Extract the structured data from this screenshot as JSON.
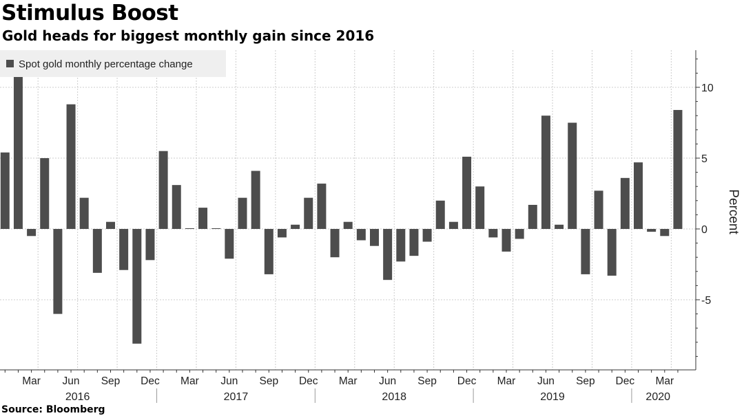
{
  "header": {
    "title": "Stimulus Boost",
    "subtitle": "Gold heads for biggest monthly gain since 2016"
  },
  "footer": {
    "source": "Source: Bloomberg"
  },
  "colors": {
    "bar": "#4d4d4d",
    "grid": "#cccccc",
    "legend_bg": "#efefef"
  },
  "chart_data": {
    "type": "bar",
    "title": "",
    "ylabel": "Percent",
    "ylim": [
      -10,
      12.5
    ],
    "yticks": [
      -5,
      0,
      5,
      10
    ],
    "legend": {
      "placement": "top-left"
    },
    "grid": true,
    "month_tick_labels": [
      "Mar",
      "Jun",
      "Sep",
      "Dec",
      "Mar",
      "Jun",
      "Sep",
      "Dec",
      "Mar",
      "Jun",
      "Sep",
      "Dec",
      "Mar",
      "Jun",
      "Sep",
      "Dec",
      "Mar"
    ],
    "year_labels": [
      "2016",
      "2017",
      "2018",
      "2019",
      "2020"
    ],
    "categories": [
      "Jan 2016",
      "Feb 2016",
      "Mar 2016",
      "Apr 2016",
      "May 2016",
      "Jun 2016",
      "Jul 2016",
      "Aug 2016",
      "Sep 2016",
      "Oct 2016",
      "Nov 2016",
      "Dec 2016",
      "Jan 2017",
      "Feb 2017",
      "Mar 2017",
      "Apr 2017",
      "May 2017",
      "Jun 2017",
      "Jul 2017",
      "Aug 2017",
      "Sep 2017",
      "Oct 2017",
      "Nov 2017",
      "Dec 2017",
      "Jan 2018",
      "Feb 2018",
      "Mar 2018",
      "Apr 2018",
      "May 2018",
      "Jun 2018",
      "Jul 2018",
      "Aug 2018",
      "Sep 2018",
      "Oct 2018",
      "Nov 2018",
      "Dec 2018",
      "Jan 2019",
      "Feb 2019",
      "Mar 2019",
      "Apr 2019",
      "May 2019",
      "Jun 2019",
      "Jul 2019",
      "Aug 2019",
      "Sep 2019",
      "Oct 2019",
      "Nov 2019",
      "Dec 2019",
      "Jan 2020",
      "Feb 2020",
      "Mar 2020",
      "Apr 2020"
    ],
    "series": [
      {
        "name": "Spot gold monthly percentage change",
        "values": [
          5.4,
          10.8,
          -0.5,
          5.0,
          -6.0,
          8.8,
          2.2,
          -3.1,
          0.5,
          -2.9,
          -8.1,
          -2.2,
          5.5,
          3.1,
          0.05,
          1.5,
          0.05,
          -2.1,
          2.2,
          4.1,
          -3.2,
          -0.6,
          0.3,
          2.2,
          3.2,
          -2.0,
          0.5,
          -0.8,
          -1.2,
          -3.6,
          -2.3,
          -1.9,
          -0.9,
          2.0,
          0.5,
          5.1,
          3.0,
          -0.6,
          -1.6,
          -0.7,
          1.7,
          8.0,
          0.3,
          7.5,
          -3.2,
          2.7,
          -3.3,
          3.6,
          4.7,
          -0.2,
          -0.5,
          8.4
        ]
      }
    ]
  }
}
